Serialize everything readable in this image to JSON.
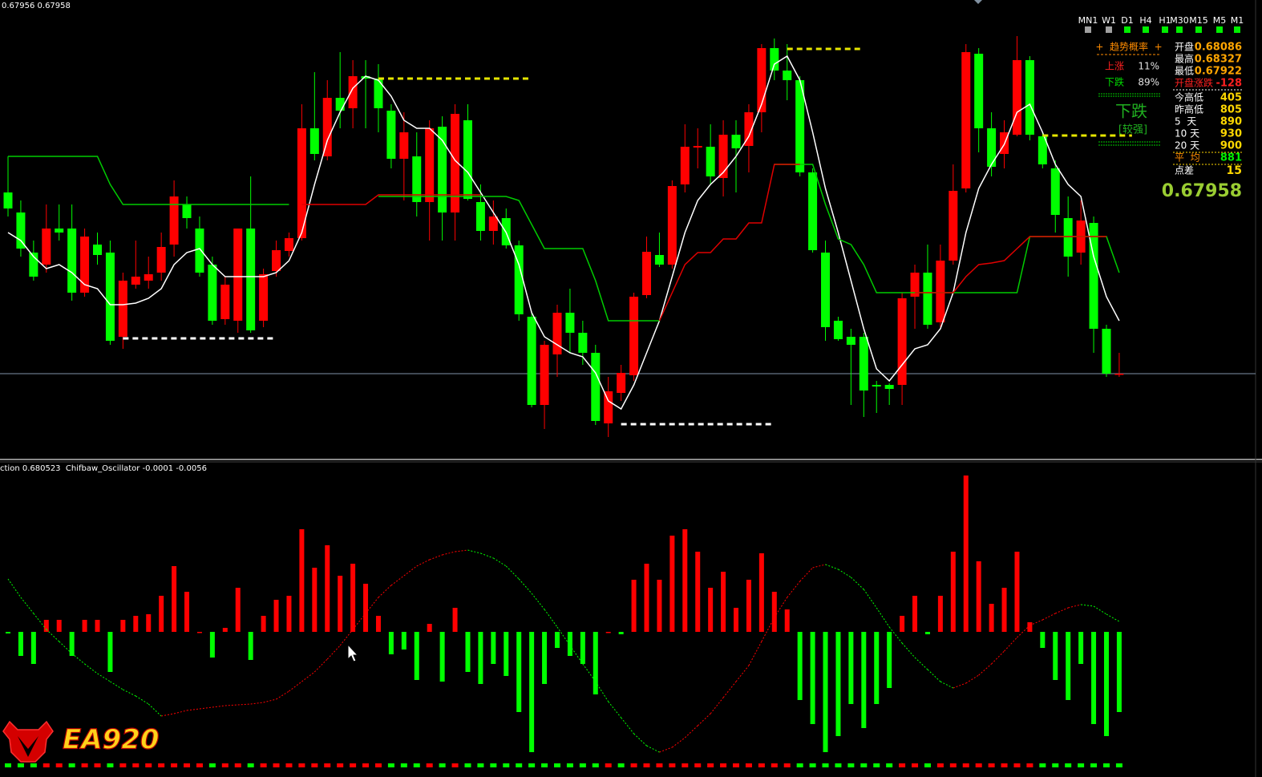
{
  "chart_data": [
    {
      "type": "candlestick",
      "title": "0.67956 0.67958",
      "up_color": "#ff0000",
      "down_color": "#00ff00",
      "ylim": [
        0.67852,
        0.68412
      ],
      "ohlc": [
        [
          0.68184,
          0.68229,
          0.68154,
          0.68164
        ],
        [
          0.68159,
          0.68174,
          0.68104,
          0.68114
        ],
        [
          0.68109,
          0.68124,
          0.68074,
          0.68079
        ],
        [
          0.68094,
          0.68169,
          0.68084,
          0.68139
        ],
        [
          0.68139,
          0.68169,
          0.68124,
          0.68134
        ],
        [
          0.68139,
          0.68169,
          0.68049,
          0.68059
        ],
        [
          0.68059,
          0.68139,
          0.68054,
          0.68129
        ],
        [
          0.68119,
          0.68134,
          0.68094,
          0.68106
        ],
        [
          0.68109,
          0.68124,
          0.67994,
          0.67999
        ],
        [
          0.68004,
          0.68084,
          0.67989,
          0.68074
        ],
        [
          0.68069,
          0.68124,
          0.68064,
          0.68079
        ],
        [
          0.68074,
          0.68104,
          0.68064,
          0.68082
        ],
        [
          0.68084,
          0.68134,
          0.68074,
          0.68116
        ],
        [
          0.68119,
          0.68199,
          0.68104,
          0.68179
        ],
        [
          0.68169,
          0.68179,
          0.68139,
          0.68152
        ],
        [
          0.68139,
          0.68154,
          0.68079,
          0.68084
        ],
        [
          0.68094,
          0.68104,
          0.68019,
          0.68024
        ],
        [
          0.68026,
          0.68079,
          0.68019,
          0.68069
        ],
        [
          0.68024,
          0.68139,
          0.68009,
          0.68139
        ],
        [
          0.68139,
          0.68204,
          0.68009,
          0.68012
        ],
        [
          0.68024,
          0.68089,
          0.68016,
          0.68082
        ],
        [
          0.68086,
          0.68124,
          0.68079,
          0.68112
        ],
        [
          0.68111,
          0.68134,
          0.68104,
          0.68127
        ],
        [
          0.68127,
          0.68294,
          0.68124,
          0.68264
        ],
        [
          0.68264,
          0.68334,
          0.68224,
          0.68232
        ],
        [
          0.68229,
          0.68324,
          0.68224,
          0.68302
        ],
        [
          0.68302,
          0.68359,
          0.68264,
          0.68286
        ],
        [
          0.68289,
          0.68349,
          0.68264,
          0.68329
        ],
        [
          0.68329,
          0.68349,
          0.68264,
          0.68326
        ],
        [
          0.68326,
          0.68344,
          0.68259,
          0.68289
        ],
        [
          0.68286,
          0.68294,
          0.68214,
          0.68226
        ],
        [
          0.68226,
          0.68284,
          0.68174,
          0.68259
        ],
        [
          0.68229,
          0.68259,
          0.68154,
          0.68172
        ],
        [
          0.68172,
          0.68274,
          0.68124,
          0.68264
        ],
        [
          0.68266,
          0.68279,
          0.68124,
          0.68159
        ],
        [
          0.68159,
          0.68294,
          0.68124,
          0.68282
        ],
        [
          0.68274,
          0.68294,
          0.68174,
          0.68176
        ],
        [
          0.68172,
          0.68194,
          0.68124,
          0.68136
        ],
        [
          0.68136,
          0.68174,
          0.68119,
          0.68154
        ],
        [
          0.68152,
          0.68164,
          0.68114,
          0.68118
        ],
        [
          0.68118,
          0.68124,
          0.68024,
          0.68032
        ],
        [
          0.68029,
          0.68034,
          0.67916,
          0.67919
        ],
        [
          0.67919,
          0.67999,
          0.67889,
          0.67994
        ],
        [
          0.67982,
          0.68044,
          0.67954,
          0.68034
        ],
        [
          0.68034,
          0.68064,
          0.67984,
          0.68009
        ],
        [
          0.68009,
          0.68024,
          0.67969,
          0.67984
        ],
        [
          0.67984,
          0.67994,
          0.67894,
          0.67899
        ],
        [
          0.67896,
          0.67954,
          0.67879,
          0.67936
        ],
        [
          0.67934,
          0.67969,
          0.67924,
          0.67959
        ],
        [
          0.67956,
          0.68059,
          0.67949,
          0.68054
        ],
        [
          0.68056,
          0.68129,
          0.68052,
          0.6811
        ],
        [
          0.68106,
          0.68134,
          0.68091,
          0.68094
        ],
        [
          0.68094,
          0.68199,
          0.68089,
          0.68192
        ],
        [
          0.68194,
          0.68269,
          0.68184,
          0.68241
        ],
        [
          0.6824,
          0.68264,
          0.68214,
          0.68242
        ],
        [
          0.68241,
          0.68269,
          0.68194,
          0.68204
        ],
        [
          0.68202,
          0.68274,
          0.68179,
          0.68256
        ],
        [
          0.68256,
          0.68274,
          0.68184,
          0.68239
        ],
        [
          0.68242,
          0.68294,
          0.68209,
          0.68284
        ],
        [
          0.68284,
          0.68369,
          0.68259,
          0.68364
        ],
        [
          0.68364,
          0.68376,
          0.68324,
          0.68336
        ],
        [
          0.68336,
          0.68369,
          0.68299,
          0.68324
        ],
        [
          0.68324,
          0.68329,
          0.68204,
          0.68209
        ],
        [
          0.68209,
          0.68214,
          0.68109,
          0.68112
        ],
        [
          0.68109,
          0.68124,
          0.67999,
          0.68016
        ],
        [
          0.68024,
          0.68029,
          0.67999,
          0.68001
        ],
        [
          0.68004,
          0.68014,
          0.67919,
          0.67994
        ],
        [
          0.68004,
          0.68009,
          0.67904,
          0.67937
        ],
        [
          0.67944,
          0.67949,
          0.67909,
          0.67942
        ],
        [
          0.67944,
          0.67946,
          0.67919,
          0.67939
        ],
        [
          0.67944,
          0.68059,
          0.67919,
          0.68052
        ],
        [
          0.68054,
          0.68094,
          0.68014,
          0.68084
        ],
        [
          0.68084,
          0.68119,
          0.68014,
          0.68019
        ],
        [
          0.68022,
          0.68119,
          0.68016,
          0.68099
        ],
        [
          0.68099,
          0.68219,
          0.68094,
          0.68186
        ],
        [
          0.68189,
          0.68369,
          0.68184,
          0.68359
        ],
        [
          0.68357,
          0.68364,
          0.68234,
          0.68264
        ],
        [
          0.68264,
          0.68284,
          0.68204,
          0.68216
        ],
        [
          0.68232,
          0.68274,
          0.68214,
          0.68259
        ],
        [
          0.68256,
          0.68379,
          0.68254,
          0.68349
        ],
        [
          0.68349,
          0.68354,
          0.68249,
          0.68256
        ],
        [
          0.68254,
          0.68259,
          0.68214,
          0.68219
        ],
        [
          0.68214,
          0.68224,
          0.68134,
          0.68156
        ],
        [
          0.68152,
          0.68179,
          0.68079,
          0.68104
        ],
        [
          0.68109,
          0.68174,
          0.68094,
          0.68149
        ],
        [
          0.68146,
          0.68154,
          0.67984,
          0.68014
        ],
        [
          0.68014,
          0.68019,
          0.67954,
          0.67958
        ],
        [
          0.67958,
          0.67984,
          0.67954,
          0.67958
        ]
      ],
      "series": [
        {
          "color": "#ffffff",
          "values": [
            0.68134,
            0.68124,
            0.68104,
            0.68089,
            0.68094,
            0.68084,
            0.68069,
            0.68064,
            0.68044,
            0.68044,
            0.68046,
            0.68052,
            0.68064,
            0.68094,
            0.68109,
            0.68114,
            0.68094,
            0.68079,
            0.68079,
            0.68079,
            0.68079,
            0.68084,
            0.68099,
            0.68134,
            0.68194,
            0.68249,
            0.68284,
            0.68314,
            0.68329,
            0.68324,
            0.68304,
            0.68274,
            0.68264,
            0.68264,
            0.68249,
            0.68224,
            0.68209,
            0.68184,
            0.68159,
            0.68134,
            0.68094,
            0.68034,
            0.68004,
            0.67994,
            0.67984,
            0.67979,
            0.67959,
            0.67924,
            0.67914,
            0.67944,
            0.67984,
            0.68024,
            0.68079,
            0.68134,
            0.68174,
            0.68194,
            0.68209,
            0.68229,
            0.68254,
            0.68294,
            0.68344,
            0.68354,
            0.68324,
            0.68259,
            0.68189,
            0.68134,
            0.68074,
            0.68014,
            0.67964,
            0.67949,
            0.67969,
            0.67989,
            0.67994,
            0.68014,
            0.68059,
            0.68134,
            0.68189,
            0.68219,
            0.68244,
            0.68284,
            0.68294,
            0.68259,
            0.68219,
            0.68194,
            0.68179,
            0.68104,
            0.68054,
            0.68024
          ]
        },
        {
          "color": "#00cc00",
          "values": [
            0.68229,
            0.68229,
            0.68229,
            0.68229,
            0.68229,
            0.68229,
            0.68229,
            0.68229,
            0.68194,
            0.68169,
            0.68169,
            0.68169,
            0.68169,
            0.68169,
            0.68169,
            0.68169,
            0.68169,
            0.68169,
            0.68169,
            0.68169,
            0.68169,
            0.68169,
            0.68169,
            null,
            null,
            null,
            null,
            null,
            null,
            0.68179,
            0.68179,
            0.68179,
            0.68179,
            0.68179,
            0.68179,
            0.68179,
            0.68179,
            0.68179,
            0.68179,
            0.68179,
            0.68174,
            0.68144,
            0.68114,
            0.68114,
            0.68114,
            0.68114,
            0.68074,
            0.68024,
            0.68024,
            0.68024,
            0.68024,
            0.68024,
            null,
            null,
            null,
            null,
            null,
            null,
            null,
            null,
            0.68219,
            0.68219,
            0.68219,
            0.68219,
            0.68169,
            0.68126,
            0.68119,
            0.68094,
            0.68059,
            0.68059,
            0.68059,
            0.68059,
            0.68059,
            0.68059,
            0.68059,
            0.68059,
            0.68059,
            0.68059,
            0.68059,
            0.68059,
            0.68129,
            0.68129,
            0.68129,
            0.68129,
            0.68129,
            0.68129,
            0.68129,
            0.68084
          ]
        },
        {
          "color": "#e00000",
          "values": [
            null,
            null,
            null,
            null,
            null,
            null,
            null,
            null,
            null,
            null,
            null,
            null,
            null,
            null,
            null,
            null,
            null,
            null,
            null,
            null,
            null,
            null,
            null,
            0.68169,
            0.68169,
            0.68169,
            0.68169,
            0.68169,
            0.68169,
            0.68181,
            0.68181,
            0.68181,
            0.68181,
            0.68181,
            0.68181,
            0.68181,
            0.68181,
            0.68181,
            null,
            null,
            null,
            null,
            null,
            null,
            null,
            null,
            null,
            null,
            null,
            null,
            null,
            0.68024,
            0.68059,
            0.68094,
            0.68109,
            0.68109,
            0.68126,
            0.68126,
            0.68146,
            0.68146,
            0.68219,
            0.68219,
            0.68219,
            null,
            null,
            null,
            null,
            null,
            null,
            null,
            null,
            0.68059,
            0.68059,
            0.68059,
            0.68059,
            0.68079,
            0.68094,
            0.68096,
            0.68099,
            0.68114,
            0.68129,
            0.68129,
            0.68129,
            0.68129,
            0.68129,
            0.68129,
            0.68129,
            null
          ]
        }
      ],
      "levels": [
        {
          "value": 0.68002,
          "color": "#ffffff"
        },
        {
          "value": 0.68326,
          "color": "#e6e600"
        },
        {
          "value": 0.67895,
          "color": "#ffffff"
        },
        {
          "value": 0.68363,
          "color": "#e6e600"
        },
        {
          "value": 0.68255,
          "color": "#e6e600"
        }
      ],
      "price_line": {
        "value": 0.67958,
        "color": "#7f92a8"
      }
    },
    {
      "type": "bar",
      "title": "ction 0.680523  Chifbaw_Oscillator -0.0001 -0.0056",
      "up_color": "#ff0000",
      "down_color": "#00ff00",
      "ylim": [
        -0.0081,
        0.0099
      ],
      "values": [
        -0.0001,
        -0.0015,
        -0.002,
        0.00075,
        0.00075,
        -0.0015,
        0.00075,
        0.00075,
        -0.0025,
        0.00075,
        0.001,
        0.0011,
        0.00225,
        0.0041,
        0.0025,
        0,
        -0.0016,
        0.00025,
        0.00275,
        -0.00175,
        0.001,
        0.002,
        0.00225,
        0.0064,
        0.004,
        0.0054,
        0.0035,
        0.00425,
        0.003,
        0.001,
        -0.0014,
        -0.0011,
        -0.003,
        0.0005,
        -0.0031,
        0.0015,
        -0.0025,
        -0.00325,
        -0.002,
        -0.00275,
        -0.005,
        -0.0075,
        -0.00325,
        -0.001,
        -0.0015,
        -0.002,
        -0.0039,
        0,
        -0.00015,
        0.00325,
        0.00425,
        0.00325,
        0.006,
        0.0064,
        0.005,
        0.00275,
        0.00375,
        0.0015,
        0.00325,
        0.0049,
        0.0025,
        0.0014,
        -0.00425,
        -0.00575,
        -0.0075,
        -0.0065,
        -0.0045,
        -0.006,
        -0.0045,
        -0.0035,
        0.001,
        0.00225,
        -0.00015,
        0.00225,
        0.005,
        0.00975,
        0.0044,
        0.00175,
        0.00275,
        0.005,
        0.0006,
        -0.001,
        -0.003,
        -0.00425,
        -0.002,
        -0.00575,
        -0.0065,
        -0.005
      ],
      "signal": [
        0.0033,
        0.00215,
        0.00115,
        0.00015,
        -0.0006,
        -0.00135,
        -0.002,
        -0.0026,
        -0.0031,
        -0.0036,
        -0.004,
        -0.0045,
        -0.00525,
        -0.0051,
        -0.0049,
        -0.0048,
        -0.0047,
        -0.0046,
        -0.00455,
        -0.0045,
        -0.0044,
        -0.0042,
        -0.0037,
        -0.0031,
        -0.0025,
        -0.0017,
        -0.00085,
        0.00015,
        0.00115,
        0.00215,
        0.0029,
        0.0035,
        0.0041,
        0.0045,
        0.0048,
        0.005,
        0.0051,
        0.0049,
        0.0046,
        0.0041,
        0.0033,
        0.0024,
        0.0014,
        0.0003,
        -0.00085,
        -0.002,
        -0.0031,
        -0.00435,
        -0.00535,
        -0.00635,
        -0.0071,
        -0.0075,
        -0.0072,
        -0.0066,
        -0.00585,
        -0.0051,
        -0.0041,
        -0.0031,
        -0.0021,
        -0.0006,
        0.0009,
        0.00215,
        0.00315,
        0.004,
        0.0042,
        0.0039,
        0.0034,
        0.00265,
        0.0015,
        0.0003,
        -0.0007,
        -0.0016,
        -0.00235,
        -0.0031,
        -0.0035,
        -0.0032,
        -0.0027,
        -0.002,
        -0.0012,
        -0.00035,
        0.0004,
        0.00075,
        0.00115,
        0.0015,
        0.0017,
        0.0016,
        0.0011,
        0.00065
      ]
    }
  ],
  "timeframes": [
    "MN1",
    "W1",
    "D1",
    "H4",
    "H1",
    "M30",
    "M15",
    "M5",
    "M1"
  ],
  "timeframe_states": [
    "#a0a0a0",
    "#a0a0a0",
    "#00ee00",
    "#00ee00",
    "#00ee00",
    "#00ee00",
    "#00ee00",
    "#00ee00",
    "#00ee00"
  ],
  "panel": {
    "trend_title": "+  趋势概率  +",
    "up_label": "上涨",
    "up_value": "11%",
    "down_label": "下跌",
    "down_value": "89%",
    "signal": "下跌",
    "strength": "[较强]",
    "stats": [
      [
        "开盘",
        "0.68086"
      ],
      [
        "最高",
        "0.68327"
      ],
      [
        "最低",
        "0.67922"
      ],
      [
        "开盘涨跌",
        "-128"
      ],
      [
        "今高低",
        "405"
      ],
      [
        "昨高低",
        "805"
      ],
      [
        "5  天",
        "890"
      ],
      [
        "10 天",
        "930"
      ],
      [
        "20 天",
        "900"
      ],
      [
        "平  均",
        "881"
      ],
      [
        "点差",
        "15"
      ]
    ],
    "price": "0.67958"
  },
  "logo": "EA920"
}
